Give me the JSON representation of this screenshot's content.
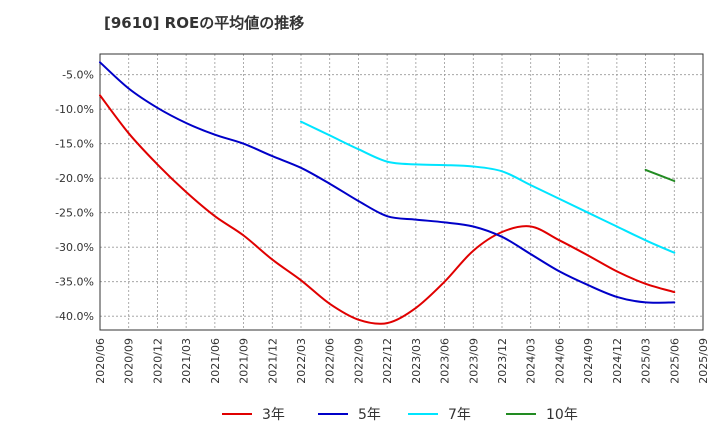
{
  "chart_data": {
    "type": "line",
    "title": "[9610]  ROEの平均値の推移",
    "xlabel": "",
    "ylabel": "",
    "ylim": [
      -42,
      -2
    ],
    "y_ticks": [
      -5,
      -10,
      -15,
      -20,
      -25,
      -30,
      -35,
      -40
    ],
    "y_tick_labels": [
      "-5.0%",
      "-10.0%",
      "-15.0%",
      "-20.0%",
      "-25.0%",
      "-30.0%",
      "-35.0%",
      "-40.0%"
    ],
    "x_ticks": [
      "2020/06",
      "2020/09",
      "2020/12",
      "2021/03",
      "2021/06",
      "2021/09",
      "2021/12",
      "2022/03",
      "2022/06",
      "2022/09",
      "2022/12",
      "2023/03",
      "2023/06",
      "2023/09",
      "2023/12",
      "2024/03",
      "2024/06",
      "2024/09",
      "2024/12",
      "2025/03",
      "2025/06",
      "2025/09"
    ],
    "grid": true,
    "legend_position": "bottom",
    "series": [
      {
        "name": "3年",
        "color": "#e00000",
        "x": [
          "2020/06",
          "2020/09",
          "2020/12",
          "2021/03",
          "2021/06",
          "2021/09",
          "2021/12",
          "2022/03",
          "2022/06",
          "2022/09",
          "2022/12",
          "2023/03",
          "2023/06",
          "2023/09",
          "2023/12",
          "2024/03",
          "2024/06",
          "2024/09",
          "2024/12",
          "2025/03",
          "2025/06"
        ],
        "values": [
          -8.0,
          -13.5,
          -18.0,
          -22.0,
          -25.5,
          -28.3,
          -31.8,
          -34.8,
          -38.2,
          -40.5,
          -41.0,
          -38.8,
          -35.0,
          -30.5,
          -27.8,
          -27.0,
          -29.0,
          -31.2,
          -33.5,
          -35.3,
          -36.5
        ]
      },
      {
        "name": "5年",
        "color": "#0000c8",
        "x": [
          "2020/06",
          "2020/09",
          "2020/12",
          "2021/03",
          "2021/06",
          "2021/09",
          "2021/12",
          "2022/03",
          "2022/06",
          "2022/09",
          "2022/12",
          "2023/03",
          "2023/06",
          "2023/09",
          "2023/12",
          "2024/03",
          "2024/06",
          "2024/09",
          "2024/12",
          "2025/03",
          "2025/06"
        ],
        "values": [
          -3.2,
          -7.0,
          -9.8,
          -12.0,
          -13.7,
          -15.0,
          -16.8,
          -18.5,
          -20.8,
          -23.3,
          -25.5,
          -26.0,
          -26.4,
          -27.0,
          -28.5,
          -31.0,
          -33.5,
          -35.5,
          -37.2,
          -38.0,
          -38.0
        ]
      },
      {
        "name": "7年",
        "color": "#00e5ff",
        "x": [
          "2022/03",
          "2022/06",
          "2022/09",
          "2022/12",
          "2023/03",
          "2023/06",
          "2023/09",
          "2023/12",
          "2024/03",
          "2024/06",
          "2024/09",
          "2024/12",
          "2025/03",
          "2025/06"
        ],
        "values": [
          -11.8,
          -13.8,
          -15.8,
          -17.6,
          -18.0,
          -18.1,
          -18.3,
          -19.0,
          -21.0,
          -23.0,
          -25.0,
          -27.0,
          -29.0,
          -30.8
        ]
      },
      {
        "name": "10年",
        "color": "#228b22",
        "x": [
          "2025/03",
          "2025/06"
        ],
        "values": [
          -18.8,
          -20.4
        ]
      }
    ]
  }
}
